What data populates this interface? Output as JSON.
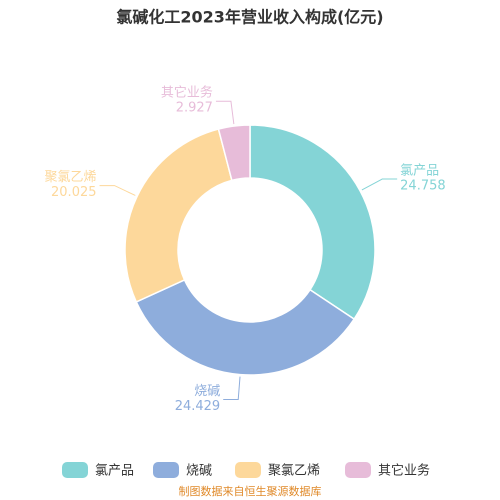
{
  "chart_data": {
    "type": "donut",
    "title": "氯碱化工2023年营业收入构成(亿元)",
    "categories": [
      "氯产品",
      "烧碱",
      "聚氯乙烯",
      "其它业务"
    ],
    "values": [
      24.758,
      24.429,
      20.025,
      2.927
    ],
    "colors": [
      "#84d4d6",
      "#8eaddc",
      "#fdd89b",
      "#e7bcd9"
    ],
    "legend": "bottom",
    "source": "制图数据来自恒生聚源数据库"
  }
}
